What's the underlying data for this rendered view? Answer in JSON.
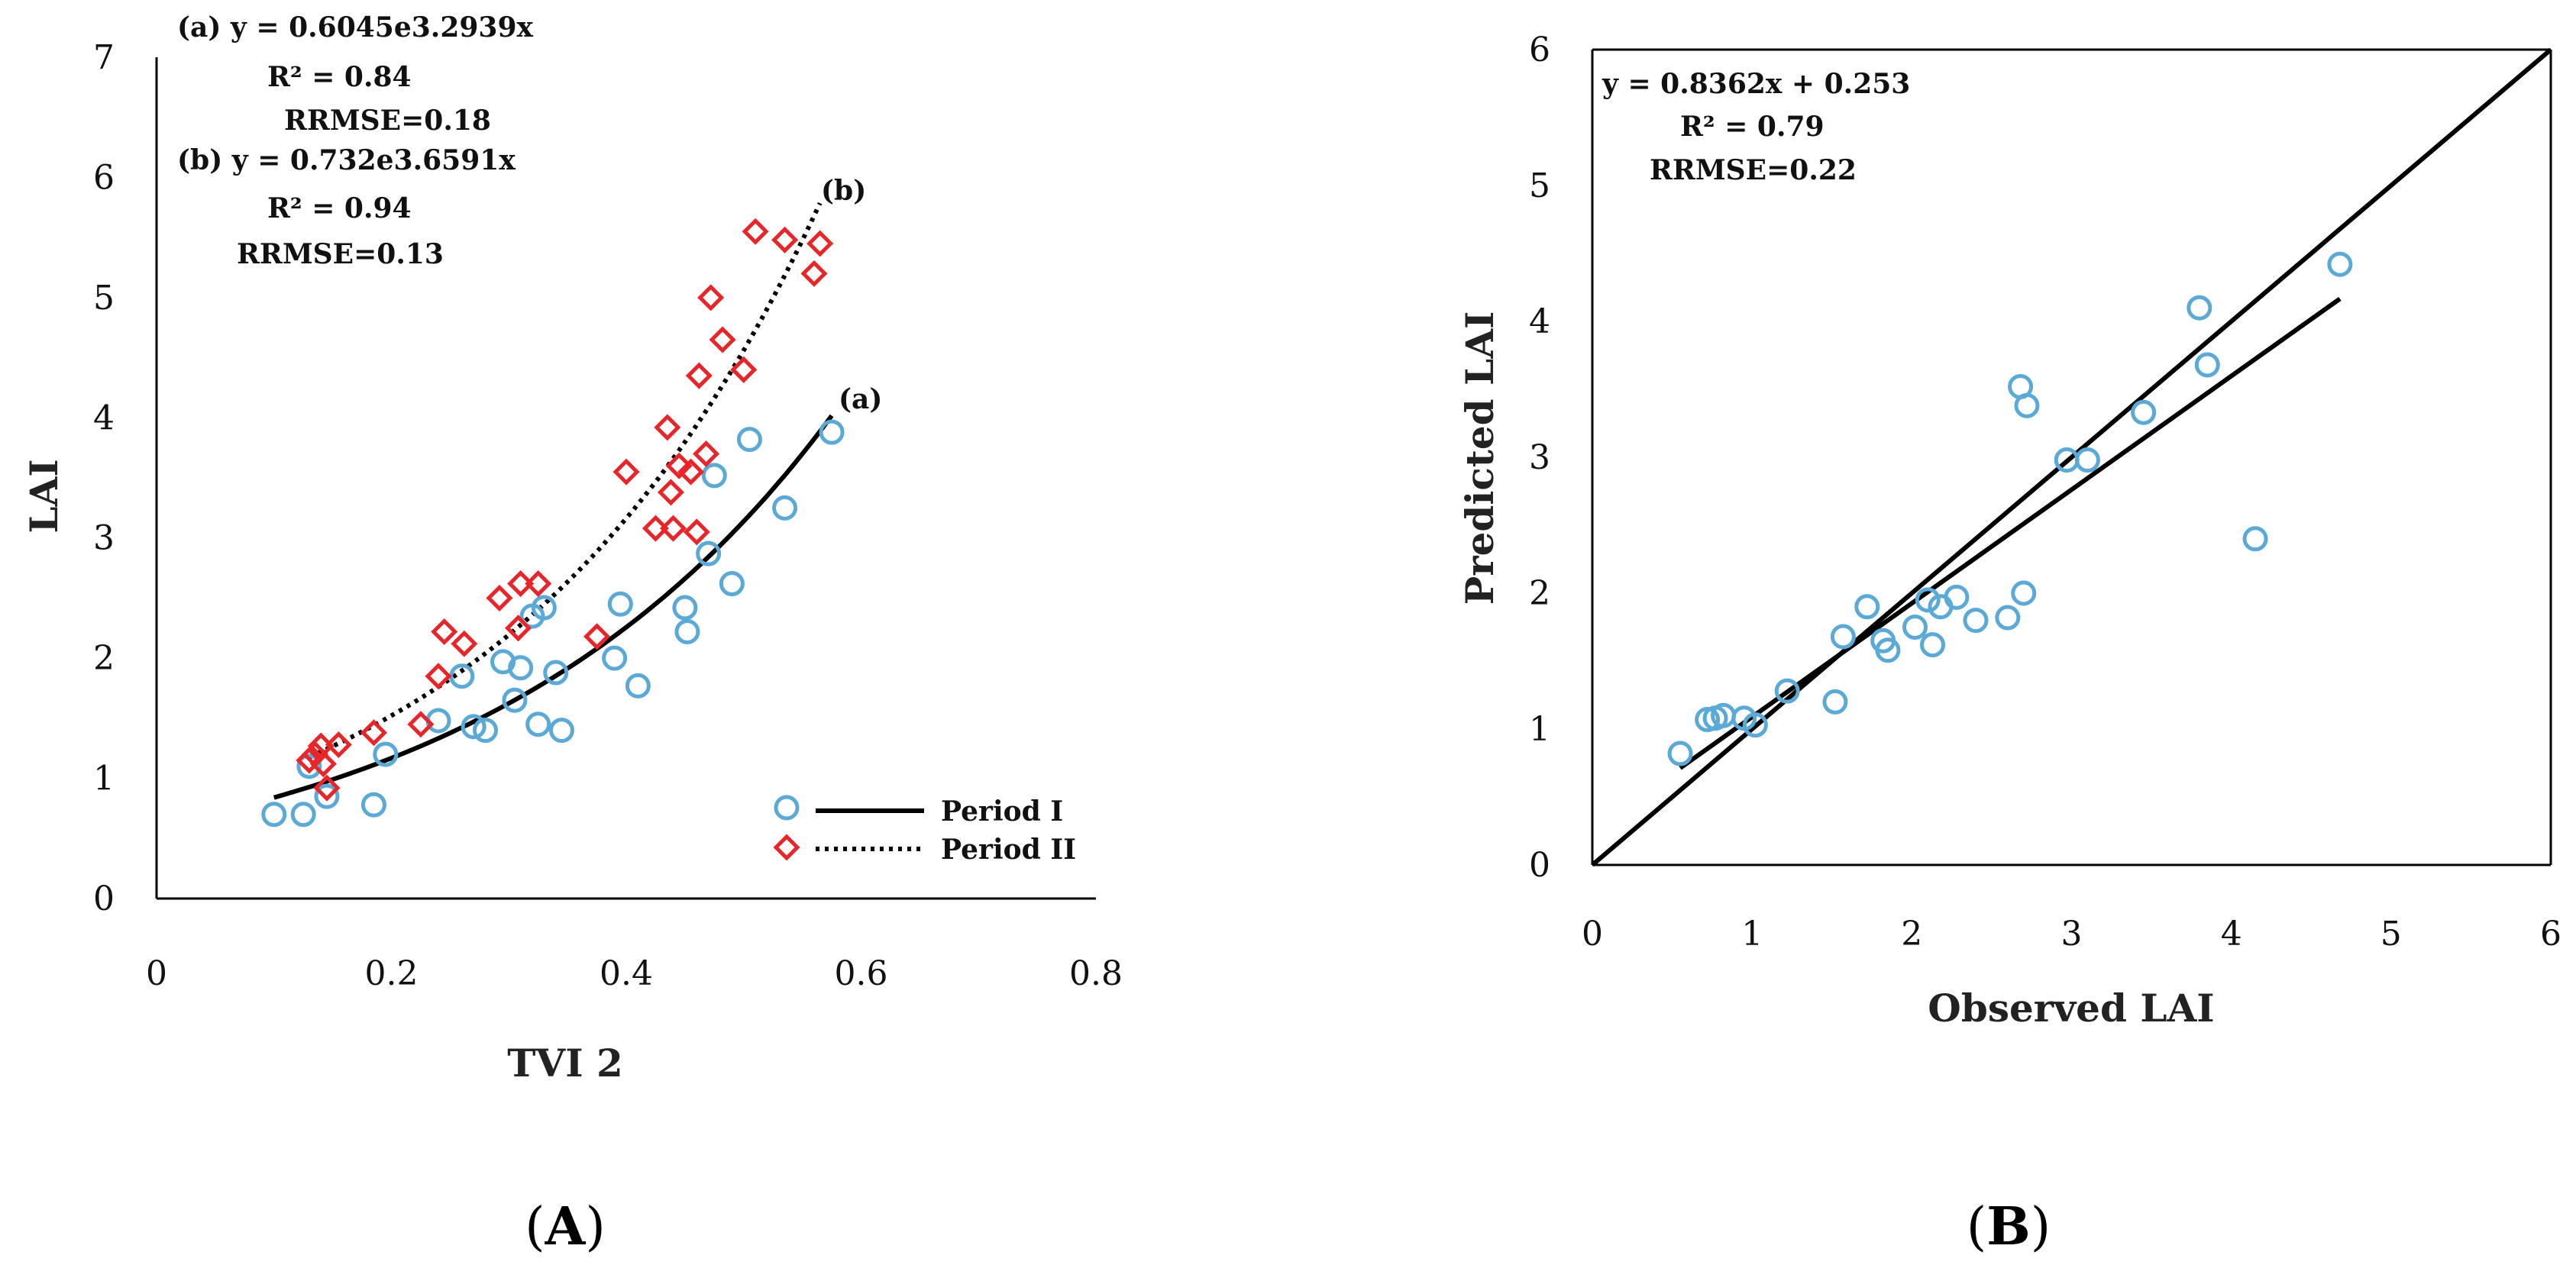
{
  "chart_data": [
    {
      "panel": "A",
      "type": "scatter",
      "xlabel": "TVI 2",
      "ylabel": "LAI",
      "xlim": [
        0,
        0.8
      ],
      "ylim": [
        0,
        7
      ],
      "xticks": [
        "0",
        "0.2",
        "0.4",
        "0.6",
        "0.8"
      ],
      "yticks": [
        "0",
        "1",
        "2",
        "3",
        "4",
        "5",
        "6",
        "7"
      ],
      "grid": false,
      "legend_position": "bottom-right",
      "annotations": {
        "a_eq": "(a) y = 0.6045e3.2939x",
        "a_r2": "R² = 0.84",
        "a_rrmse": "RRMSE=0.18",
        "b_eq": "(b) y = 0.732e3.6591x",
        "b_r2": "R² = 0.94",
        "b_rrmse": "RRMSE=0.13",
        "a_curve_label": "(a)",
        "b_curve_label": "(b)"
      },
      "series": [
        {
          "name": "Period I",
          "marker": "circle",
          "color": "#5aa9d6",
          "line_style": "solid",
          "fit": {
            "a": 0.6045,
            "b": 3.2939,
            "x_from": 0.1,
            "x_to": 0.575
          },
          "points": [
            [
              0.1,
              0.7
            ],
            [
              0.125,
              0.7
            ],
            [
              0.13,
              1.1
            ],
            [
              0.145,
              0.85
            ],
            [
              0.185,
              0.78
            ],
            [
              0.195,
              1.2
            ],
            [
              0.24,
              1.48
            ],
            [
              0.26,
              1.85
            ],
            [
              0.27,
              1.43
            ],
            [
              0.28,
              1.4
            ],
            [
              0.295,
              1.97
            ],
            [
              0.305,
              1.65
            ],
            [
              0.31,
              1.92
            ],
            [
              0.32,
              2.35
            ],
            [
              0.325,
              1.45
            ],
            [
              0.33,
              2.42
            ],
            [
              0.34,
              1.88
            ],
            [
              0.345,
              1.4
            ],
            [
              0.39,
              2.0
            ],
            [
              0.395,
              2.45
            ],
            [
              0.41,
              1.77
            ],
            [
              0.45,
              2.42
            ],
            [
              0.452,
              2.22
            ],
            [
              0.47,
              2.87
            ],
            [
              0.475,
              3.52
            ],
            [
              0.49,
              2.62
            ],
            [
              0.505,
              3.82
            ],
            [
              0.535,
              3.25
            ],
            [
              0.575,
              3.88
            ]
          ]
        },
        {
          "name": "Period II",
          "marker": "diamond",
          "color": "#e8262a",
          "line_style": "dotted",
          "fit": {
            "a": 0.732,
            "b": 3.6591,
            "x_from": 0.13,
            "x_to": 0.565
          },
          "points": [
            [
              0.13,
              1.15
            ],
            [
              0.135,
              1.2
            ],
            [
              0.14,
              1.27
            ],
            [
              0.142,
              1.12
            ],
            [
              0.145,
              0.92
            ],
            [
              0.155,
              1.28
            ],
            [
              0.185,
              1.38
            ],
            [
              0.225,
              1.45
            ],
            [
              0.24,
              1.85
            ],
            [
              0.245,
              2.22
            ],
            [
              0.262,
              2.12
            ],
            [
              0.292,
              2.5
            ],
            [
              0.308,
              2.25
            ],
            [
              0.31,
              2.62
            ],
            [
              0.325,
              2.62
            ],
            [
              0.375,
              2.18
            ],
            [
              0.4,
              3.55
            ],
            [
              0.425,
              3.08
            ],
            [
              0.435,
              3.92
            ],
            [
              0.438,
              3.38
            ],
            [
              0.44,
              3.08
            ],
            [
              0.445,
              3.6
            ],
            [
              0.455,
              3.55
            ],
            [
              0.46,
              3.05
            ],
            [
              0.462,
              4.35
            ],
            [
              0.468,
              3.7
            ],
            [
              0.472,
              5.0
            ],
            [
              0.482,
              4.65
            ],
            [
              0.5,
              4.4
            ],
            [
              0.51,
              5.55
            ],
            [
              0.535,
              5.48
            ],
            [
              0.56,
              5.2
            ],
            [
              0.565,
              5.45
            ]
          ]
        }
      ]
    },
    {
      "panel": "B",
      "type": "scatter",
      "xlabel": "Observed LAI",
      "ylabel": "Predicted LAI",
      "xlim": [
        0,
        6
      ],
      "ylim": [
        0,
        6
      ],
      "xticks": [
        "0",
        "1",
        "2",
        "3",
        "4",
        "5",
        "6"
      ],
      "yticks": [
        "0",
        "1",
        "2",
        "3",
        "4",
        "5",
        "6"
      ],
      "grid": false,
      "annotations": {
        "eq": "y = 0.8362x + 0.253",
        "r2": "R² = 0.79",
        "rrmse": "RRMSE=0.22"
      },
      "one_to_one": [
        [
          0,
          0
        ],
        [
          6,
          6
        ]
      ],
      "fit": {
        "slope": 0.8362,
        "intercept": 0.253,
        "x_from": 0.55,
        "x_to": 4.68
      },
      "series": [
        {
          "name": "Observed vs Predicted",
          "marker": "circle",
          "color": "#5aa9d6",
          "points": [
            [
              0.55,
              0.82
            ],
            [
              0.72,
              1.07
            ],
            [
              0.77,
              1.08
            ],
            [
              0.82,
              1.1
            ],
            [
              0.95,
              1.08
            ],
            [
              1.02,
              1.03
            ],
            [
              1.22,
              1.28
            ],
            [
              1.52,
              1.2
            ],
            [
              1.57,
              1.68
            ],
            [
              1.72,
              1.9
            ],
            [
              1.82,
              1.65
            ],
            [
              1.85,
              1.58
            ],
            [
              2.02,
              1.75
            ],
            [
              2.1,
              1.95
            ],
            [
              2.13,
              1.62
            ],
            [
              2.18,
              1.9
            ],
            [
              2.28,
              1.97
            ],
            [
              2.4,
              1.8
            ],
            [
              2.6,
              1.82
            ],
            [
              2.68,
              3.52
            ],
            [
              2.7,
              2.0
            ],
            [
              2.72,
              3.38
            ],
            [
              2.97,
              2.98
            ],
            [
              3.1,
              2.98
            ],
            [
              3.45,
              3.33
            ],
            [
              3.8,
              4.1
            ],
            [
              3.85,
              3.68
            ],
            [
              4.15,
              2.4
            ],
            [
              4.68,
              4.42
            ]
          ]
        }
      ]
    }
  ],
  "panel_labels": {
    "A": {
      "open": "(",
      "letter": "A",
      "close": ")"
    },
    "B": {
      "open": "(",
      "letter": "B",
      "close": ")"
    }
  }
}
